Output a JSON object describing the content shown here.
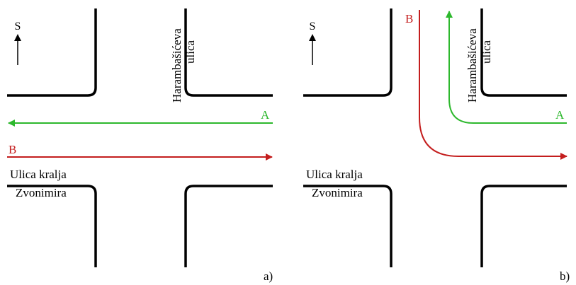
{
  "colors": {
    "route_a": "#2db82d",
    "route_b": "#c41e1e",
    "curb": "#000000"
  },
  "icons": {
    "compass": "north-arrow-icon",
    "arrowhead": "arrowhead-icon"
  },
  "panels": [
    {
      "id": "a",
      "caption": "a)",
      "compass_label": "S",
      "street_vertical": [
        "Harambašićeva",
        "ulica"
      ],
      "street_horizontal": [
        "Ulica kralja",
        "Zvonimira"
      ],
      "route_a": {
        "label": "A"
      },
      "route_b": {
        "label": "B"
      }
    },
    {
      "id": "b",
      "caption": "b)",
      "compass_label": "S",
      "street_vertical": [
        "Harambašićeva",
        "ulica"
      ],
      "street_horizontal": [
        "Ulica kralja",
        "Zvonimira"
      ],
      "route_a": {
        "label": "A"
      },
      "route_b": {
        "label": "B"
      }
    }
  ]
}
